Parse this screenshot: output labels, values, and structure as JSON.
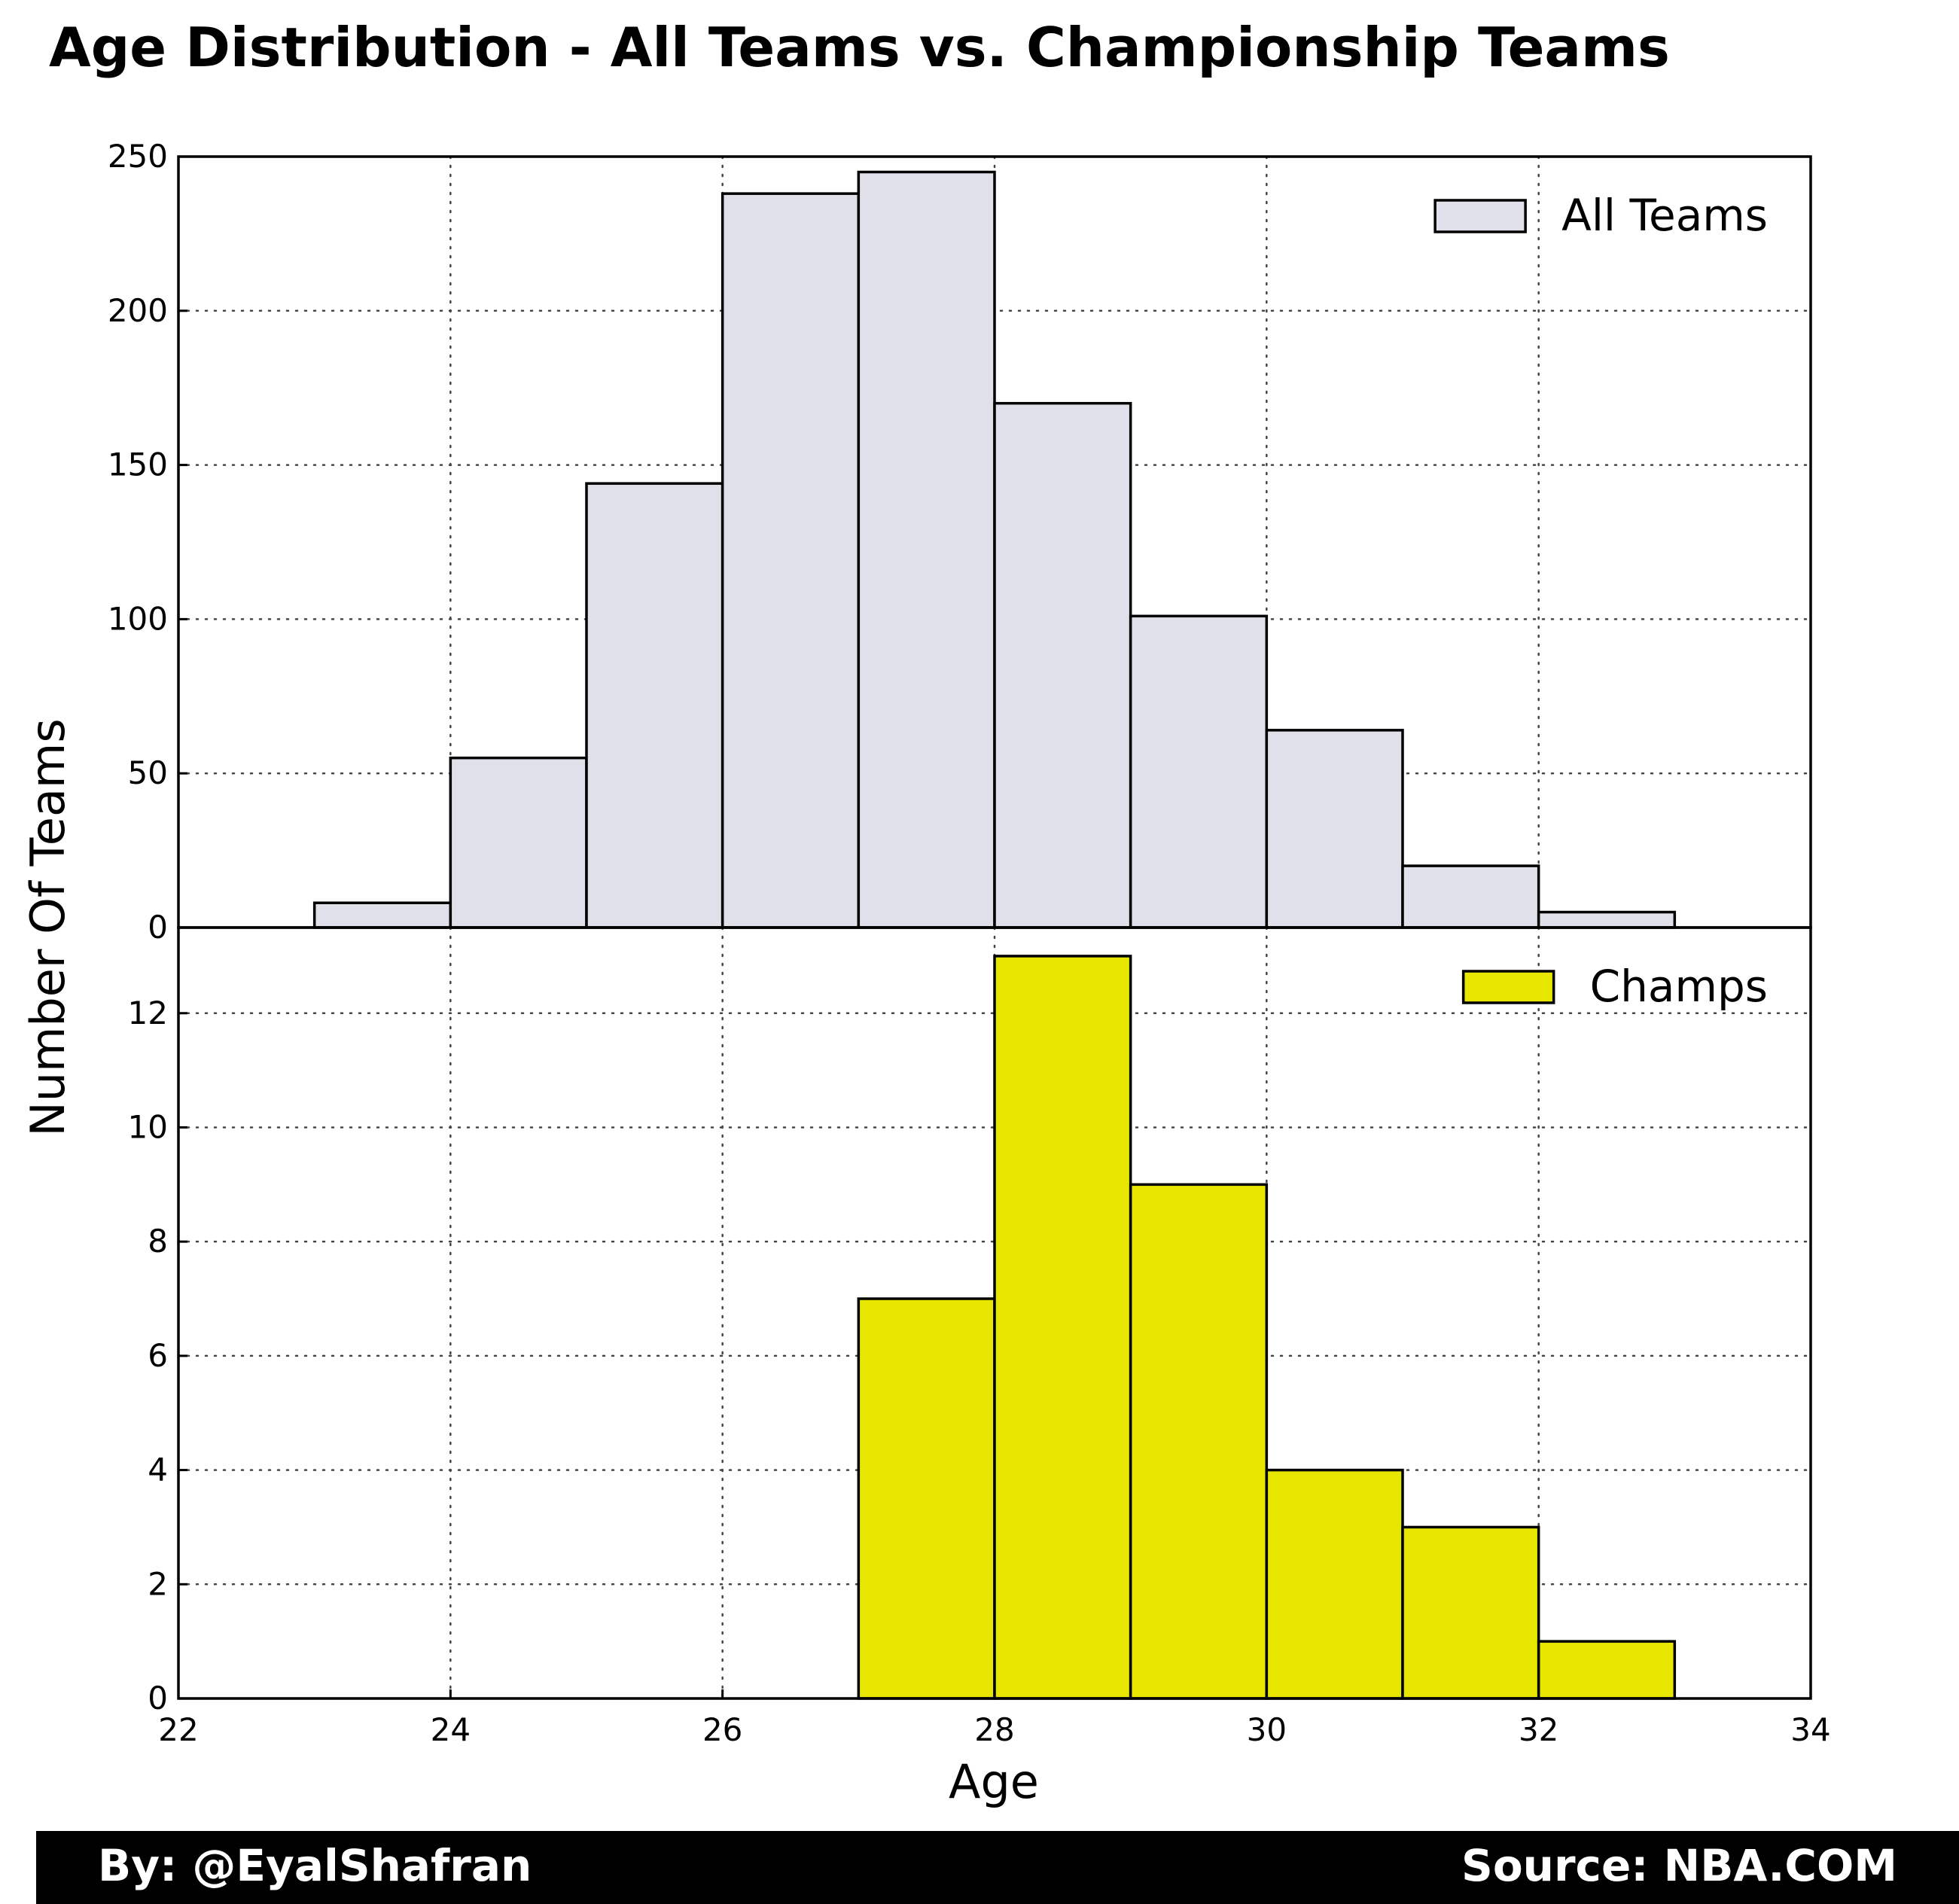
{
  "chart_data": {
    "type": "bar",
    "title": "Age Distribution - All Teams vs. Championship Teams",
    "xlabel": "Age",
    "ylabel": "Number Of Teams",
    "xlim": [
      22,
      34
    ],
    "x_ticks": [
      22,
      24,
      26,
      28,
      30,
      32,
      34
    ],
    "grid": true,
    "bin_width": 1,
    "panels": [
      {
        "series_name": "All Teams",
        "color": "#e0e0ea",
        "legend": "top-right",
        "ylim": [
          0,
          250
        ],
        "y_ticks": [
          0,
          50,
          100,
          150,
          200,
          250
        ],
        "bins": [
          {
            "start": 23,
            "end": 24,
            "value": 8
          },
          {
            "start": 24,
            "end": 25,
            "value": 55
          },
          {
            "start": 25,
            "end": 26,
            "value": 144
          },
          {
            "start": 26,
            "end": 27,
            "value": 238
          },
          {
            "start": 27,
            "end": 28,
            "value": 245
          },
          {
            "start": 28,
            "end": 29,
            "value": 170
          },
          {
            "start": 29,
            "end": 30,
            "value": 101
          },
          {
            "start": 30,
            "end": 31,
            "value": 64
          },
          {
            "start": 31,
            "end": 32,
            "value": 20
          },
          {
            "start": 32,
            "end": 33,
            "value": 5
          }
        ]
      },
      {
        "series_name": "Champs",
        "color": "#e6e600",
        "legend": "top-right",
        "ylim": [
          0,
          13.5
        ],
        "y_ticks": [
          0,
          2,
          4,
          6,
          8,
          10,
          12
        ],
        "bins": [
          {
            "start": 27,
            "end": 28,
            "value": 7
          },
          {
            "start": 28,
            "end": 29,
            "value": 13
          },
          {
            "start": 29,
            "end": 30,
            "value": 9
          },
          {
            "start": 30,
            "end": 31,
            "value": 4
          },
          {
            "start": 31,
            "end": 32,
            "value": 3
          },
          {
            "start": 32,
            "end": 33,
            "value": 1
          }
        ]
      }
    ]
  },
  "footer": {
    "author": "By: @EyalShafran",
    "source": "Source: NBA.COM"
  }
}
